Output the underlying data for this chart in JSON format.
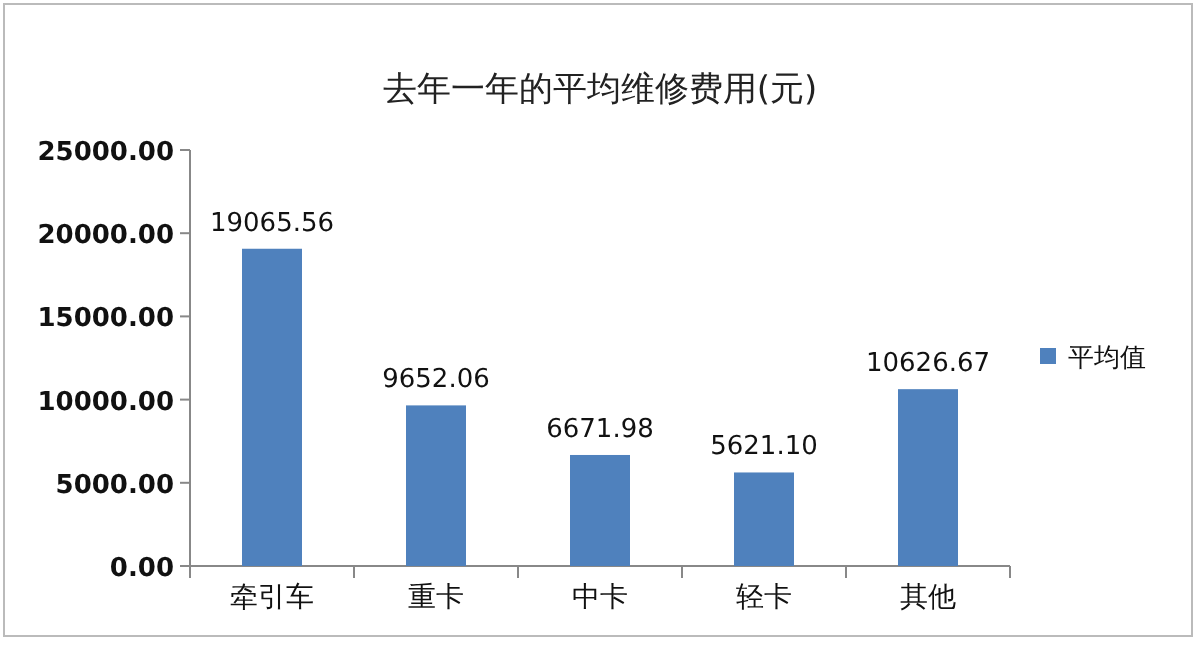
{
  "chart_data": {
    "type": "bar",
    "title": "去年一年的平均维修费用(元)",
    "categories": [
      "牵引车",
      "重卡",
      "中卡",
      "轻卡",
      "其他"
    ],
    "series": [
      {
        "name": "平均值",
        "color": "#4f81bd",
        "values": [
          19065.56,
          9652.06,
          6671.98,
          5621.1,
          10626.67
        ],
        "value_labels": [
          "19065.56",
          "9652.06",
          "6671.98",
          "5621.10",
          "10626.67"
        ]
      }
    ],
    "ylim": [
      0,
      25000
    ],
    "yticks": [
      {
        "value": 0,
        "label": "0.00"
      },
      {
        "value": 5000,
        "label": "5000.00"
      },
      {
        "value": 10000,
        "label": "10000.00"
      },
      {
        "value": 15000,
        "label": "15000.00"
      },
      {
        "value": 20000,
        "label": "20000.00"
      },
      {
        "value": 25000,
        "label": "25000.00"
      }
    ],
    "legend": "right"
  }
}
